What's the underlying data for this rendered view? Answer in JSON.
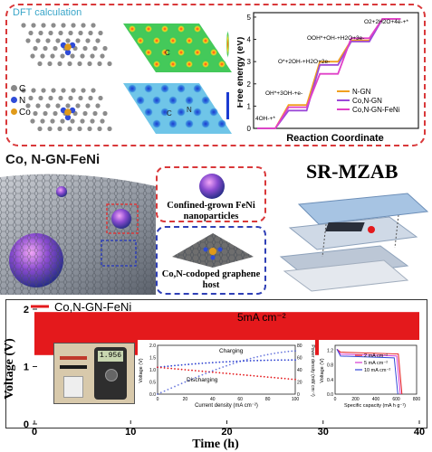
{
  "top_panel": {
    "dft_title": "DFT calculation",
    "atom_legend": [
      "C",
      "N",
      "Co"
    ],
    "map_labels": {
      "C": "C",
      "N": "N"
    }
  },
  "energy_chart": {
    "type": "line",
    "ylabel": "Free energy (eV)",
    "xlabel": "Reaction Coordinate",
    "yticks": [
      "0",
      "1",
      "2",
      "3",
      "4",
      "5"
    ],
    "ylim": [
      0,
      5.2
    ],
    "legend": [
      "N-GN",
      "Co,N-GN",
      "Co,N-GN-FeNi"
    ],
    "annotations": [
      "O2+2H2O+4e-+*",
      "OOH*+OH-+H2O+3e-",
      "O*+2OH-+H2O+2e-",
      "OH*+3OH-+e-",
      "4OH-+*"
    ],
    "colors": {
      "N-GN": "#f0a020",
      "Co,N-GN": "#9b49d8",
      "Co,N-GN-FeNi": "#e040c8"
    },
    "series": [
      {
        "name": "N-GN",
        "values": [
          0,
          1.05,
          3.0,
          3.95,
          4.92
        ]
      },
      {
        "name": "Co,N-GN",
        "values": [
          0,
          0.8,
          2.85,
          3.9,
          4.92
        ]
      },
      {
        "name": "Co,N-GN-FeNi",
        "values": [
          0,
          0.95,
          2.45,
          4.05,
          4.92
        ]
      }
    ]
  },
  "middle": {
    "material_label": "Co, N-GN-FeNi",
    "device_label": "SR-MZAB",
    "callout_red": "Confined-grown FeNi nanoparticles",
    "callout_blue": "Co,N-codoped graphene host"
  },
  "chart_data": {
    "type": "line",
    "title": "",
    "xlabel": "Time (h)",
    "ylabel": "Voltage (V)",
    "xlim": [
      0,
      40
    ],
    "ylim": [
      0,
      2
    ],
    "xticks": [
      "0",
      "10",
      "20",
      "30",
      "40"
    ],
    "yticks": [
      "0",
      "1",
      "2"
    ],
    "series": [
      {
        "name": "Co,N-GN-FeNi",
        "band_upper": 1.95,
        "band_lower": 1.2,
        "x_start": 0,
        "x_end": 40
      }
    ],
    "annotation": "5mA cm⁻²",
    "color": "#e4191c"
  },
  "inset_polarization": {
    "labels": [
      "Charging",
      "Discharging"
    ],
    "xlabel": "Current density (mA cm⁻²)",
    "ylabel_left": "Voltage (V)",
    "ylabel_right": "Power density (mW cm⁻²)",
    "xticks": [
      "0",
      "20",
      "40",
      "60",
      "80",
      "100"
    ],
    "yticks_left": [
      "0.0",
      "0.5",
      "1.0",
      "1.5",
      "2.0"
    ],
    "yticks_right": [
      "0",
      "20",
      "40",
      "60",
      "80"
    ]
  },
  "inset_capacity": {
    "legend": [
      "2 mA cm⁻²",
      "5 mA cm⁻²",
      "10 mA cm⁻²"
    ],
    "xlabel": "Specific capacity (mA h g⁻¹)",
    "ylabel": "Voltage (V)",
    "xticks": [
      "0",
      "200",
      "400",
      "600",
      "800"
    ],
    "yticks": [
      "0.0",
      "0.4",
      "0.8",
      "1.2"
    ],
    "colors": [
      "#e4191c",
      "#d63ad0",
      "#3146d8"
    ]
  },
  "multimeter_reading": "1.956"
}
